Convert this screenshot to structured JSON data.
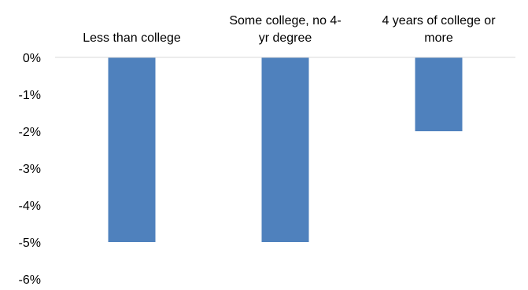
{
  "chart_data": {
    "type": "bar",
    "title": "",
    "xlabel": "",
    "ylabel": "",
    "categories": [
      [
        "Less than college"
      ],
      [
        "Some college, no 4-",
        "yr degree"
      ],
      [
        "4 years of college or",
        "more"
      ]
    ],
    "values": [
      -5,
      -5,
      -2
    ],
    "ylim": [
      -6,
      0
    ],
    "yticks": [
      0,
      -1,
      -2,
      -3,
      -4,
      -5,
      -6
    ],
    "ytick_labels": [
      "0%",
      "-1%",
      "-2%",
      "-3%",
      "-4%",
      "-5%",
      "-6%"
    ],
    "category_label_position": "top",
    "grid": false,
    "legend": "none",
    "bar_color": "#4f81bd",
    "axis_color": "#d9d9d9"
  }
}
